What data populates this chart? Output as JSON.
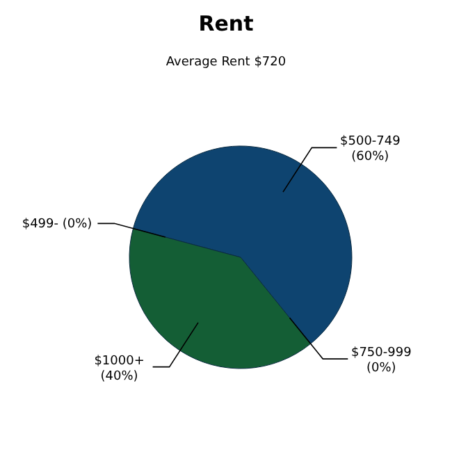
{
  "chart_data": {
    "type": "pie",
    "title": "Rent",
    "subtitle": "Average Rent  $720",
    "categories": [
      "$499-",
      "$500-749",
      "$750-999",
      "$1000+"
    ],
    "values": [
      0,
      60,
      0,
      40
    ],
    "value_labels": [
      "(0%)",
      "(60%)",
      "(0%)",
      "(40%)"
    ],
    "colors": [
      "#2f6fa8",
      "#0e4470",
      "#3a8f5a",
      "#145e35"
    ]
  }
}
